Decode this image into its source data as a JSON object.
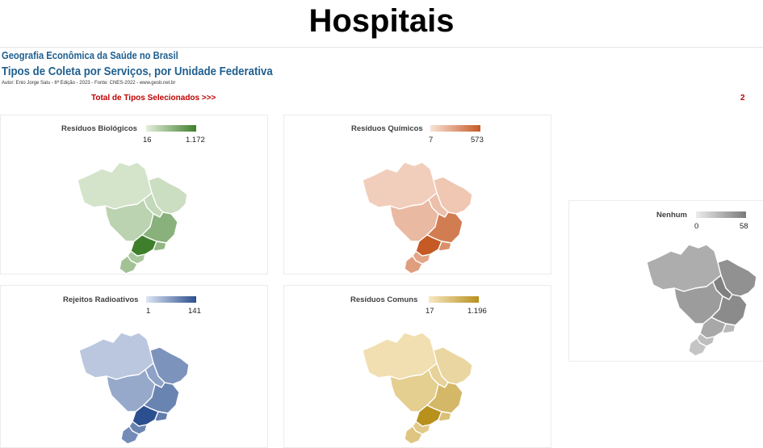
{
  "header": {
    "title": "Hospitais",
    "subtitle1": "Geografia Econômica da Saúde no Brasil",
    "subtitle2": "Tipos de Coleta por Serviços, por Unidade Federativa",
    "author": "Autor: Enio Jorge Salu - 6ª Edição - 2023 - Fonte: CNES-2022 - www.gesb.net.br",
    "total_label": "Total de Tipos Selecionados >>>",
    "total_value": "2"
  },
  "maps": [
    {
      "key": "biologicos",
      "title": "Resíduos Biológicos",
      "min_label": "16",
      "max_label": "1.172",
      "color_low": "#e4efdc",
      "color_high": "#3f7f2c",
      "levels": {
        "N": 0.1,
        "NE": 0.15,
        "NE2": 0.2,
        "CO": 0.25,
        "MG": 0.55,
        "SP": 1.0,
        "RJ": 0.5,
        "S": 0.35,
        "RS": 0.4
      }
    },
    {
      "key": "quimicos",
      "title": "Resíduos Químicos",
      "min_label": "7",
      "max_label": "573",
      "color_low": "#f9e2d6",
      "color_high": "#c55a24",
      "levels": {
        "N": 0.15,
        "NE": 0.2,
        "NE2": 0.25,
        "CO": 0.3,
        "MG": 0.75,
        "SP": 1.0,
        "RJ": 0.6,
        "S": 0.45,
        "RS": 0.5
      }
    },
    {
      "key": "radioativos",
      "title": "Rejeitos Radioativos",
      "min_label": "1",
      "max_label": "141",
      "color_low": "#dde5f3",
      "color_high": "#2c4f8f",
      "levels": {
        "N": 0.2,
        "NE": 0.55,
        "NE2": 0.45,
        "CO": 0.4,
        "MG": 0.65,
        "SP": 1.0,
        "RJ": 0.7,
        "S": 0.65,
        "RS": 0.6
      }
    },
    {
      "key": "comuns",
      "title": "Resíduos Comuns",
      "min_label": "17",
      "max_label": "1.196",
      "color_low": "#f7e8c2",
      "color_high": "#b8901c",
      "levels": {
        "N": 0.1,
        "NE": 0.2,
        "NE2": 0.25,
        "CO": 0.3,
        "MG": 0.55,
        "SP": 1.0,
        "RJ": 0.45,
        "S": 0.35,
        "RS": 0.4
      }
    },
    {
      "key": "nenhum",
      "title": "Nenhum",
      "min_label": "0",
      "max_label": "58",
      "color_low": "#ececec",
      "color_high": "#7a7a7a",
      "levels": {
        "N": 0.55,
        "NE": 0.8,
        "NE2": 0.95,
        "CO": 0.7,
        "MG": 0.85,
        "SP": 0.6,
        "RJ": 0.45,
        "S": 0.4,
        "RS": 0.35
      }
    }
  ]
}
